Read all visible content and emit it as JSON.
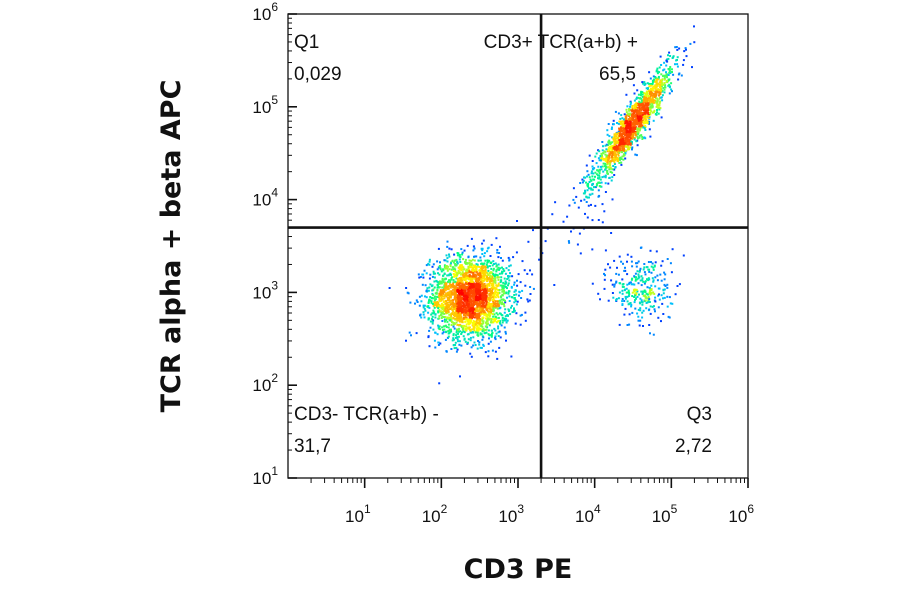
{
  "chart_data": {
    "type": "scatter",
    "title": "",
    "xlabel": "CD3 PE",
    "ylabel": "TCR alpha + beta APC",
    "x_scale": "log",
    "y_scale": "log",
    "xlim": [
      1,
      1000000
    ],
    "ylim": [
      10,
      1000000
    ],
    "grid": false,
    "legend": "none",
    "x_ticks": [
      {
        "base": "10",
        "exp": "1",
        "value": 10
      },
      {
        "base": "10",
        "exp": "2",
        "value": 100
      },
      {
        "base": "10",
        "exp": "3",
        "value": 1000
      },
      {
        "base": "10",
        "exp": "4",
        "value": 10000
      },
      {
        "base": "10",
        "exp": "5",
        "value": 100000
      },
      {
        "base": "10",
        "exp": "6",
        "value": 1000000
      }
    ],
    "y_ticks": [
      {
        "base": "10",
        "exp": "1",
        "value": 10
      },
      {
        "base": "10",
        "exp": "2",
        "value": 100
      },
      {
        "base": "10",
        "exp": "3",
        "value": 1000
      },
      {
        "base": "10",
        "exp": "4",
        "value": 10000
      },
      {
        "base": "10",
        "exp": "5",
        "value": 100000
      },
      {
        "base": "10",
        "exp": "6",
        "value": 1000000
      }
    ],
    "gates": {
      "x": 2000,
      "y": 5000
    },
    "quadrants": [
      {
        "name": "Q1",
        "value": "0,029"
      },
      {
        "name": "CD3+ TCR(a+b) +",
        "value": "65,5"
      },
      {
        "name": "CD3- TCR(a+b) -",
        "value": "31,7"
      },
      {
        "name": "Q3",
        "value": "2,72"
      }
    ],
    "populations": [
      {
        "center_x": 230,
        "center_y": 900,
        "spread_x": 0.26,
        "spread_y": 0.22,
        "count": 2600
      },
      {
        "center_x": 30000,
        "center_y": 65000,
        "spread_x": 0.17,
        "spread_y": 0.17,
        "count": 1500
      },
      {
        "center_x": 40000,
        "center_y": 1100,
        "spread_x": 0.2,
        "spread_y": 0.2,
        "count": 300
      }
    ],
    "colormap": [
      "#0000ff",
      "#00bfff",
      "#00ff7f",
      "#ffff00",
      "#ff8000",
      "#ff0000"
    ]
  }
}
